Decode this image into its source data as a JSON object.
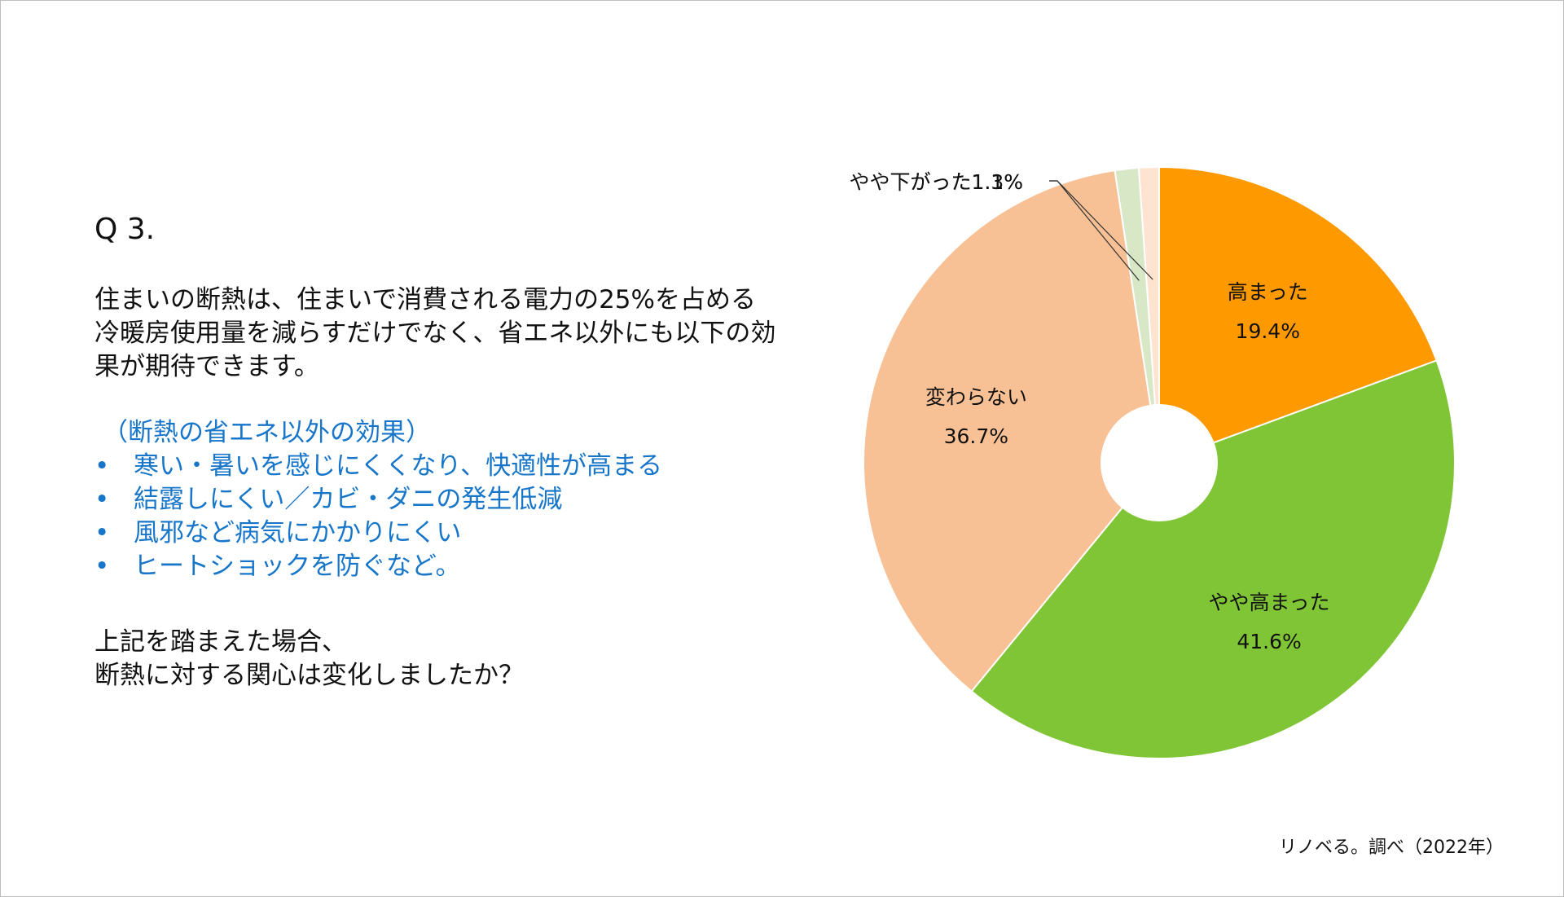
{
  "question": {
    "label": "Q 3.",
    "text": "住まいの断熱は、住まいで消費される電力の25%を占める冷暖房使用量を減らすだけでなく、省エネ以外にも以下の効果が期待できます。",
    "effects_title": "（断熱の省エネ以外の効果）",
    "effects": [
      "寒い・暑いを感じにくくなり、快適性が高まる",
      "結露しにくい／カビ・ダニの発生低減",
      "風邪など病気にかかりにくい",
      "ヒートショックを防ぐなど。"
    ],
    "bullet": "•",
    "prompt_lines": [
      "上記を踏まえた場合、",
      "断熱に対する関心は変化しましたか？"
    ]
  },
  "source": "リノベる。調べ（2022年）",
  "colors": {
    "accent_text": "#1776c9"
  },
  "chart_data": {
    "type": "pie",
    "donut": true,
    "title": "",
    "slices": [
      {
        "label": "高まった",
        "value": 19.4,
        "display": "19.4%",
        "color": "#ff9900"
      },
      {
        "label": "やや高まった",
        "value": 41.6,
        "display": "41.6%",
        "color": "#80c535"
      },
      {
        "label": "変わらない",
        "value": 36.7,
        "display": "36.7%",
        "color": "#f8c195"
      },
      {
        "label": "やや下がった",
        "value": 1.3,
        "display": "1.3%",
        "color": "#d8e7c6"
      },
      {
        "label": "下がった",
        "value": 1.1,
        "display": "1.1%",
        "color": "#fde3d0"
      }
    ],
    "start_angle_deg": 0,
    "direction": "clockwise",
    "legend": "none"
  }
}
